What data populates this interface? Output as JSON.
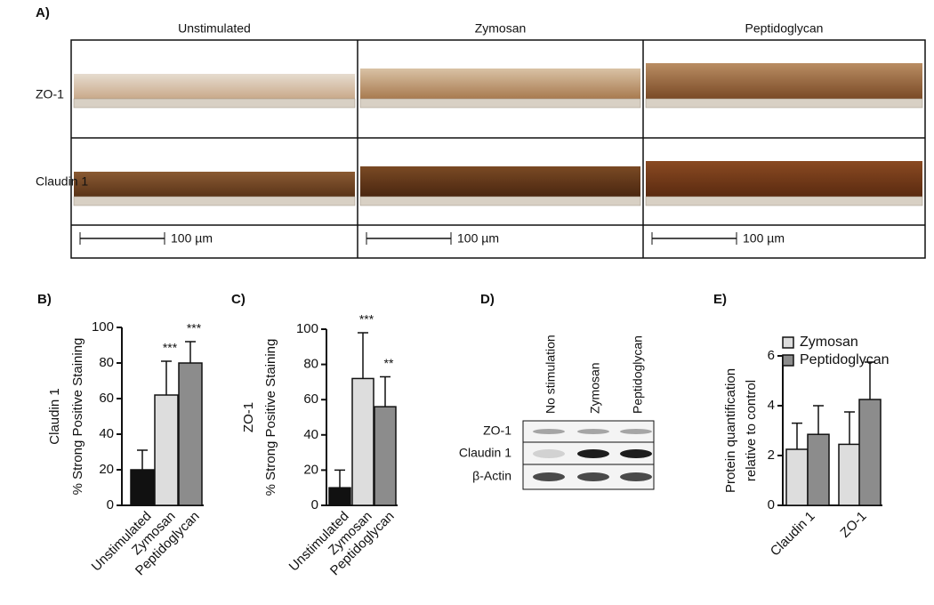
{
  "panel_a": {
    "label": "A)",
    "columns": [
      "Unstimulated",
      "Zymosan",
      "Peptidoglycan"
    ],
    "rows": [
      "ZO-1",
      "Claudin 1"
    ],
    "scale_bar": "100 µm"
  },
  "panel_d": {
    "label": "D)",
    "lanes": [
      "No stimulation",
      "Zymosan",
      "Peptidoglycan"
    ],
    "bands": [
      "ZO-1",
      "Claudin 1",
      "β-Actin"
    ]
  },
  "chart_data": [
    {
      "type": "bar",
      "label": "B)",
      "ylabel": [
        "Claudin 1",
        "% Strong Positive  Staining"
      ],
      "categories": [
        "Unstimulated",
        "Zymosan",
        "Peptidoglycan"
      ],
      "values": [
        20,
        62,
        80
      ],
      "errors": [
        11,
        19,
        12
      ],
      "colors": [
        "#111111",
        "#dddddd",
        "#8c8c8c"
      ],
      "annotations": [
        null,
        "***",
        "***"
      ],
      "ylim": [
        0,
        100
      ],
      "yticks": [
        0,
        20,
        40,
        60,
        80,
        100
      ]
    },
    {
      "type": "bar",
      "label": "C)",
      "ylabel": [
        "ZO-1",
        "% Strong Positive Staining"
      ],
      "categories": [
        "Unstimulated",
        "Zymosan",
        "Peptidoglycan"
      ],
      "values": [
        10,
        72,
        56
      ],
      "errors": [
        10,
        26,
        17
      ],
      "colors": [
        "#111111",
        "#dddddd",
        "#8c8c8c"
      ],
      "annotations": [
        null,
        "***",
        "**"
      ],
      "ylim": [
        0,
        100
      ],
      "yticks": [
        0,
        20,
        40,
        60,
        80,
        100
      ]
    },
    {
      "type": "grouped_bar",
      "label": "E)",
      "ylabel": [
        "Protein quantification",
        "relative to control"
      ],
      "categories": [
        "Claudin 1",
        "ZO-1"
      ],
      "series": [
        {
          "name": "Zymosan",
          "color": "#dddddd",
          "values": [
            2.25,
            2.45
          ],
          "errors": [
            1.05,
            1.3
          ]
        },
        {
          "name": "Peptidoglycan",
          "color": "#8c8c8c",
          "values": [
            2.85,
            4.25
          ],
          "errors": [
            1.15,
            1.5
          ]
        }
      ],
      "ylim": [
        0,
        6
      ],
      "yticks": [
        0,
        2,
        4,
        6
      ],
      "legend": "top"
    }
  ]
}
